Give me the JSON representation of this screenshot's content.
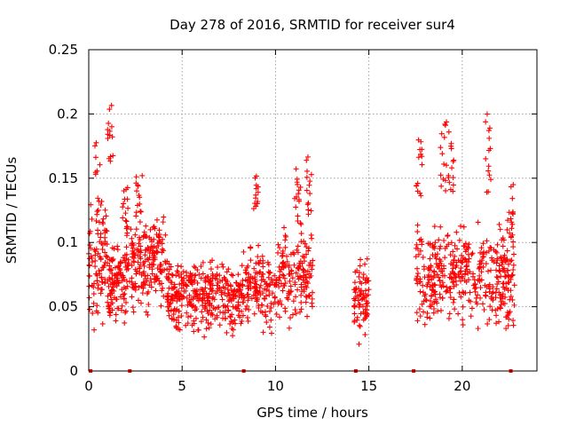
{
  "chart_data": {
    "type": "scatter",
    "title": "Day 278 of 2016, SRMTID for receiver sur4",
    "xlabel": "GPS time / hours",
    "ylabel": "SRMTID / TECUs",
    "xlim": [
      0,
      24
    ],
    "ylim": [
      0,
      0.25
    ],
    "xticks": [
      0,
      5,
      10,
      15,
      20
    ],
    "xtick_labels": [
      "0",
      "5",
      "10",
      "15",
      "20"
    ],
    "yticks": [
      0,
      0.05,
      0.1,
      0.15,
      0.2,
      0.25
    ],
    "ytick_labels": [
      "0",
      "0.05",
      "0.1",
      "0.15",
      "0.2",
      "0.25"
    ],
    "grid": true,
    "marker": "plus",
    "point_color": "#ff0000",
    "zero_markers_x": [
      0.1,
      2.2,
      8.3,
      14.3,
      17.4,
      22.6
    ],
    "clusters": [
      {
        "x": [
          0.0,
          1.0
        ],
        "y_mid": 0.085,
        "y_spread": 0.03,
        "count": 90
      },
      {
        "x": [
          1.0,
          2.0
        ],
        "y_mid": 0.068,
        "y_spread": 0.018,
        "count": 110
      },
      {
        "x": [
          2.0,
          4.2
        ],
        "y_mid": 0.085,
        "y_spread": 0.022,
        "count": 200
      },
      {
        "x": [
          4.2,
          6.0
        ],
        "y_mid": 0.058,
        "y_spread": 0.018,
        "count": 170
      },
      {
        "x": [
          6.0,
          8.2
        ],
        "y_mid": 0.058,
        "y_spread": 0.018,
        "count": 190
      },
      {
        "x": [
          8.2,
          10.0
        ],
        "y_mid": 0.065,
        "y_spread": 0.02,
        "count": 140
      },
      {
        "x": [
          10.0,
          12.0
        ],
        "y_mid": 0.075,
        "y_spread": 0.025,
        "count": 160
      },
      {
        "x": [
          14.2,
          15.0
        ],
        "y_mid": 0.058,
        "y_spread": 0.02,
        "count": 75
      },
      {
        "x": [
          17.5,
          20.0
        ],
        "y_mid": 0.075,
        "y_spread": 0.025,
        "count": 200
      },
      {
        "x": [
          20.0,
          22.8
        ],
        "y_mid": 0.072,
        "y_spread": 0.025,
        "count": 220
      }
    ],
    "spikes": [
      {
        "x": 0.5,
        "y": [
          0.11,
          0.18
        ]
      },
      {
        "x": 1.15,
        "y": [
          0.16,
          0.21
        ]
      },
      {
        "x": 1.95,
        "y": [
          0.11,
          0.145
        ]
      },
      {
        "x": 2.7,
        "y": [
          0.12,
          0.155
        ]
      },
      {
        "x": 8.9,
        "y": [
          0.125,
          0.152
        ]
      },
      {
        "x": 11.2,
        "y": [
          0.11,
          0.165
        ]
      },
      {
        "x": 11.8,
        "y": [
          0.12,
          0.17
        ]
      },
      {
        "x": 17.7,
        "y": [
          0.13,
          0.18
        ]
      },
      {
        "x": 19.0,
        "y": [
          0.14,
          0.195
        ]
      },
      {
        "x": 19.4,
        "y": [
          0.13,
          0.188
        ]
      },
      {
        "x": 21.4,
        "y": [
          0.12,
          0.2
        ]
      },
      {
        "x": 22.6,
        "y": [
          0.1,
          0.145
        ]
      }
    ]
  }
}
